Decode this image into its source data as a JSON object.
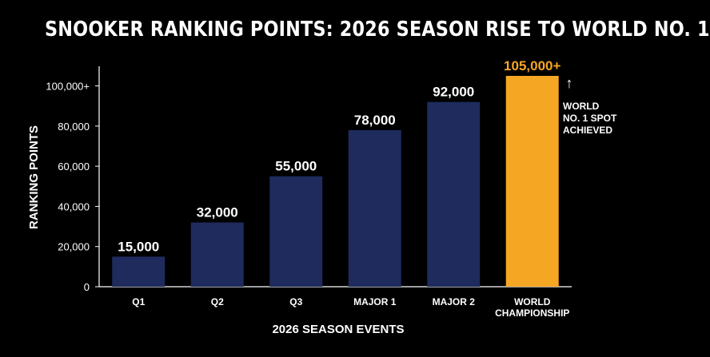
{
  "chart_data": {
    "type": "bar",
    "title": "SNOOKER RANKING POINTS: 2026 SEASON RISE TO WORLD NO. 1",
    "xlabel": "2026 SEASON EVENTS",
    "ylabel": "RANKING POINTS",
    "ylim": [
      0,
      105000
    ],
    "yticks": [
      {
        "value": 0,
        "label": "0"
      },
      {
        "value": 20000,
        "label": "20,000"
      },
      {
        "value": 40000,
        "label": "40,000"
      },
      {
        "value": 60000,
        "label": "60,000"
      },
      {
        "value": 80000,
        "label": "80,000"
      },
      {
        "value": 100000,
        "label": "100,000+"
      }
    ],
    "categories": [
      [
        "Q1"
      ],
      [
        "Q2"
      ],
      [
        "Q3"
      ],
      [
        "MAJOR 1"
      ],
      [
        "MAJOR 2"
      ],
      [
        "WORLD",
        "CHAMPIONSHIP"
      ]
    ],
    "values": [
      15000,
      32000,
      55000,
      78000,
      92000,
      105000
    ],
    "value_labels": [
      "15,000",
      "32,000",
      "55,000",
      "78,000",
      "92,000",
      "105,000+"
    ],
    "colors": [
      "#1e2b5c",
      "#1e2b5c",
      "#1e2b5c",
      "#1e2b5c",
      "#1e2b5c",
      "#f5a623"
    ],
    "label_colors": [
      "#ffffff",
      "#ffffff",
      "#ffffff",
      "#ffffff",
      "#ffffff",
      "#f5a623"
    ],
    "grid": false,
    "annotation": {
      "arrow": "↑",
      "lines": [
        "WORLD",
        "NO. 1 SPOT",
        "ACHIEVED"
      ]
    }
  }
}
